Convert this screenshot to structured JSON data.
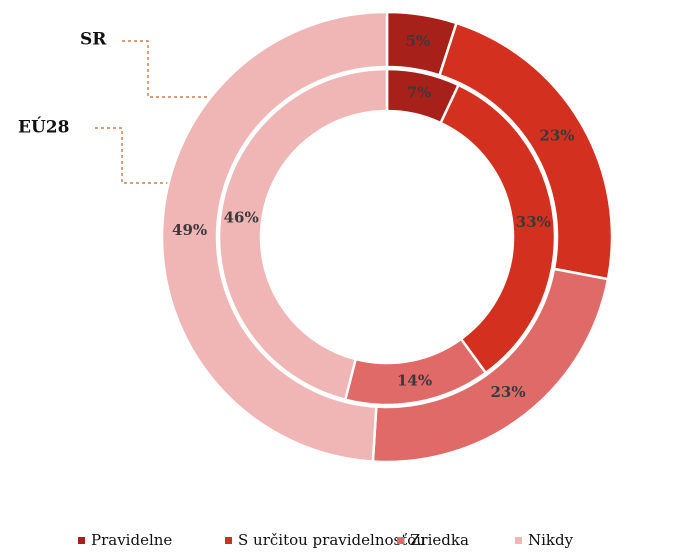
{
  "chart_data": {
    "type": "donut",
    "categories": [
      "Pravidelne",
      "S určitou pravidelnosťou",
      "Zriedka",
      "Nikdy"
    ],
    "colors": [
      "#a8201a",
      "#d3301f",
      "#e06a68",
      "#f0b6b6"
    ],
    "series": [
      {
        "name": "SR",
        "values": [
          5,
          23,
          23,
          49
        ],
        "value_labels": [
          "5%",
          "23%",
          "23%",
          "49%"
        ]
      },
      {
        "name": "EÚ28",
        "values": [
          7,
          33,
          14,
          46
        ],
        "value_labels": [
          "7%",
          "33%",
          "14%",
          "46%"
        ]
      }
    ],
    "legend": "bottom"
  }
}
